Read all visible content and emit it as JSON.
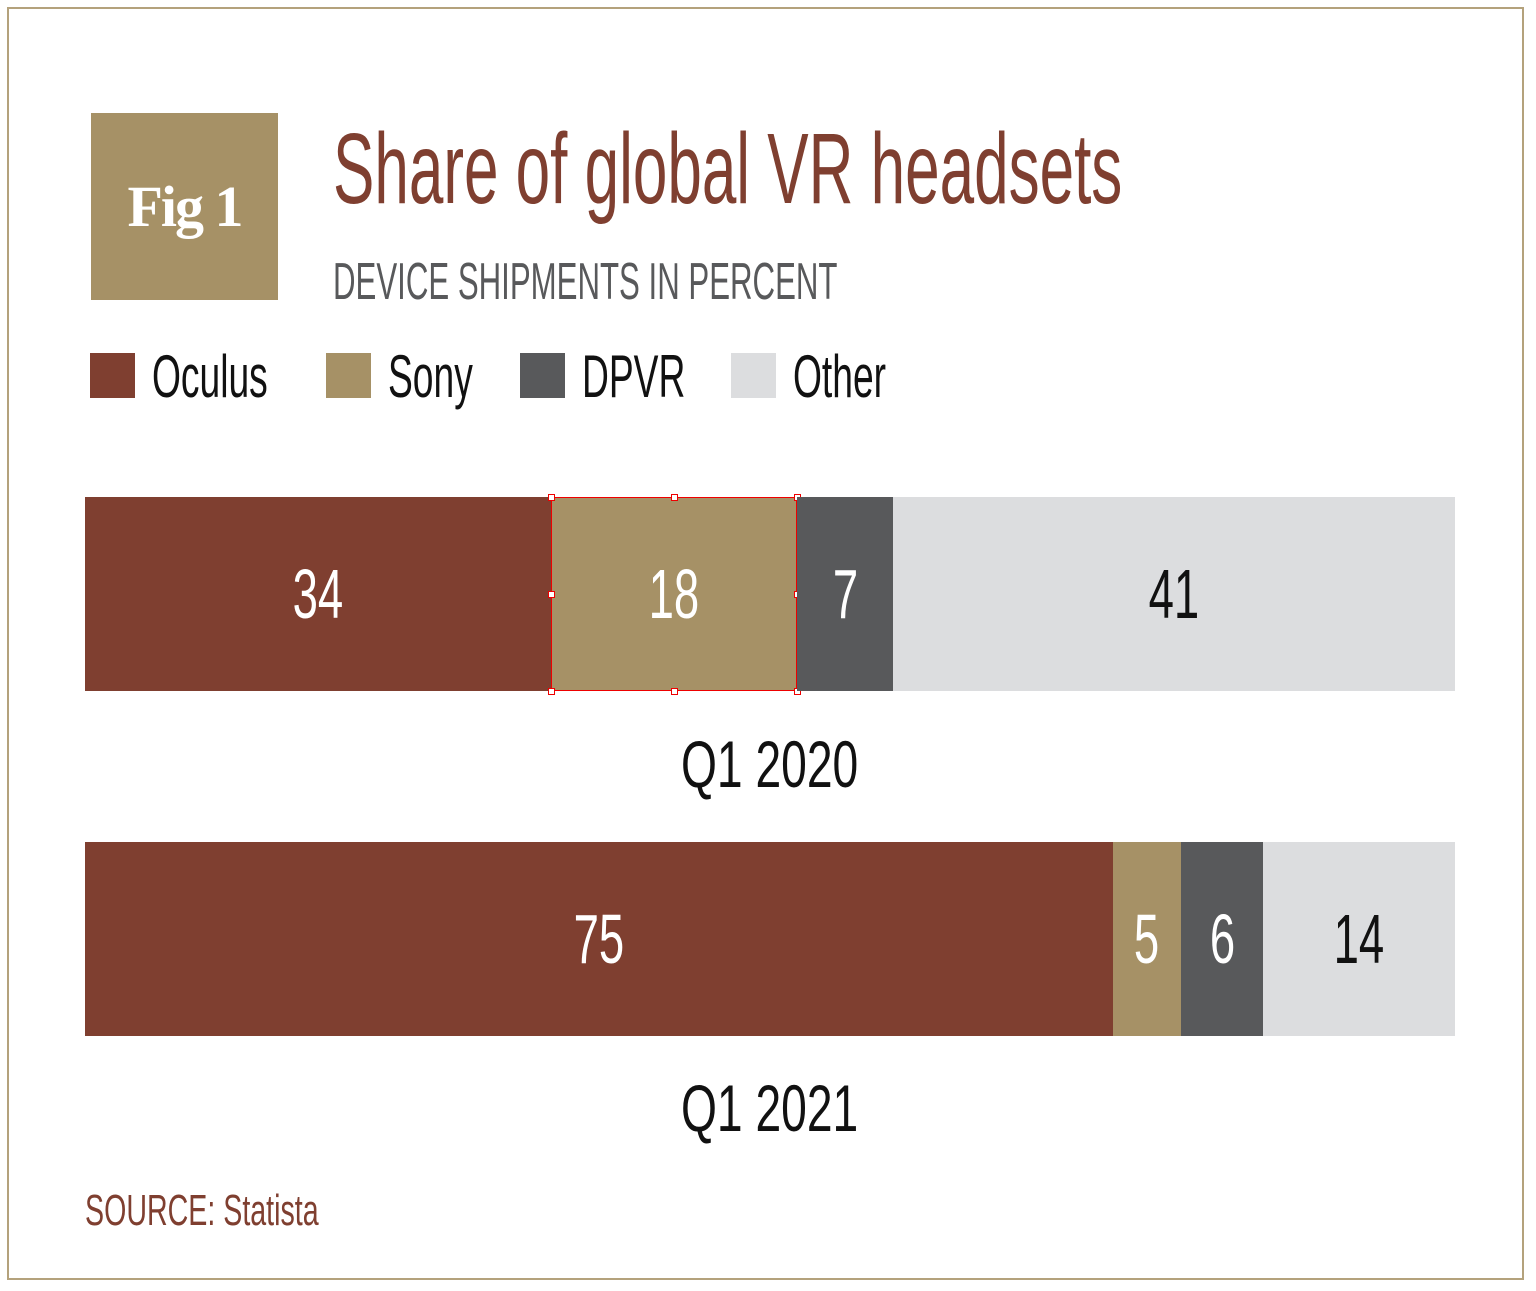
{
  "figure_badge": "Fig 1",
  "chart_data": {
    "type": "bar",
    "orientation": "horizontal",
    "stacked": true,
    "title": "Share of global VR headsets",
    "subtitle": "DEVICE SHIPMENTS IN PERCENT",
    "categories": [
      "Q1 2020",
      "Q1 2021"
    ],
    "series": [
      {
        "name": "Oculus",
        "color": "#7f3f30",
        "label_color": "#ffffff",
        "values": [
          34,
          75
        ]
      },
      {
        "name": "Sony",
        "color": "#a69166",
        "label_color": "#ffffff",
        "values": [
          18,
          5
        ]
      },
      {
        "name": "DPVR",
        "color": "#58595b",
        "label_color": "#ffffff",
        "values": [
          7,
          6
        ]
      },
      {
        "name": "Other",
        "color": "#dcdddf",
        "label_color": "#111111",
        "values": [
          41,
          14
        ]
      }
    ],
    "xlim": [
      0,
      100
    ],
    "grid": false,
    "legend": "top-left",
    "source": "SOURCE: Statista"
  }
}
